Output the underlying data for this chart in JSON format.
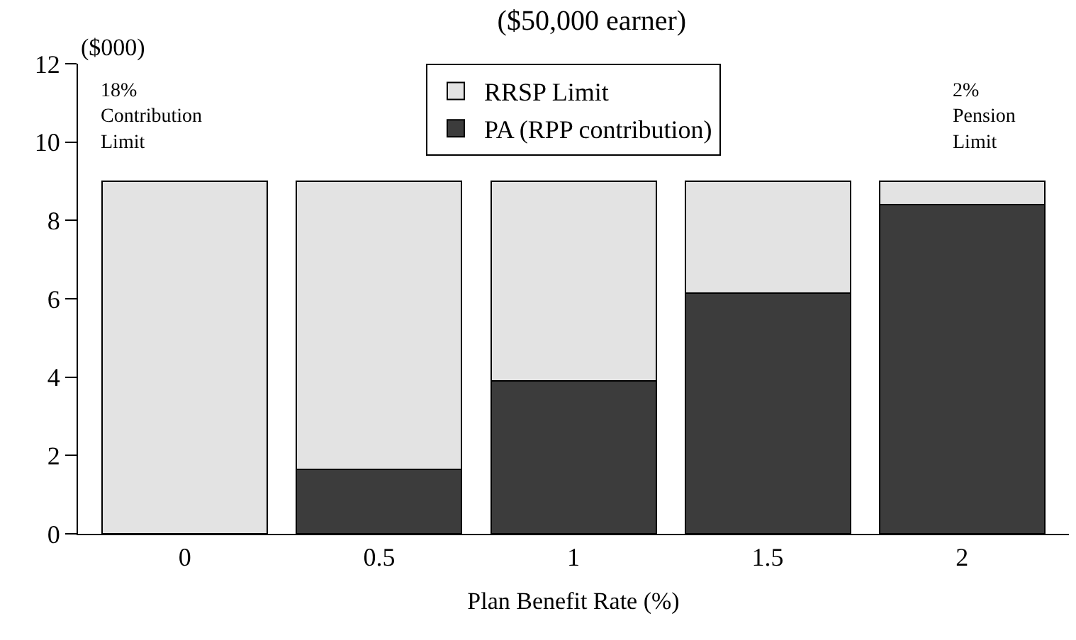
{
  "chart_data": {
    "type": "bar",
    "title": "($50,000 earner)",
    "xlabel": "Plan Benefit Rate (%)",
    "ylabel": "($000)",
    "categories": [
      "0",
      "0.5",
      "1",
      "1.5",
      "2"
    ],
    "stacked": true,
    "series": [
      {
        "name": "PA (RPP contribution)",
        "color": "#3c3c3c",
        "values": [
          0,
          1.65,
          3.9,
          6.15,
          8.4
        ]
      },
      {
        "name": "RRSP Limit",
        "color": "#e3e3e3",
        "values": [
          9,
          7.35,
          5.1,
          2.85,
          0.6
        ]
      }
    ],
    "ylim": [
      0,
      12
    ],
    "yticks": [
      0,
      2,
      4,
      6,
      8,
      10,
      12
    ],
    "legend": "top",
    "annotations": [
      "18%\nContribution\nLimit",
      "2%\nPension\nLimit"
    ]
  }
}
